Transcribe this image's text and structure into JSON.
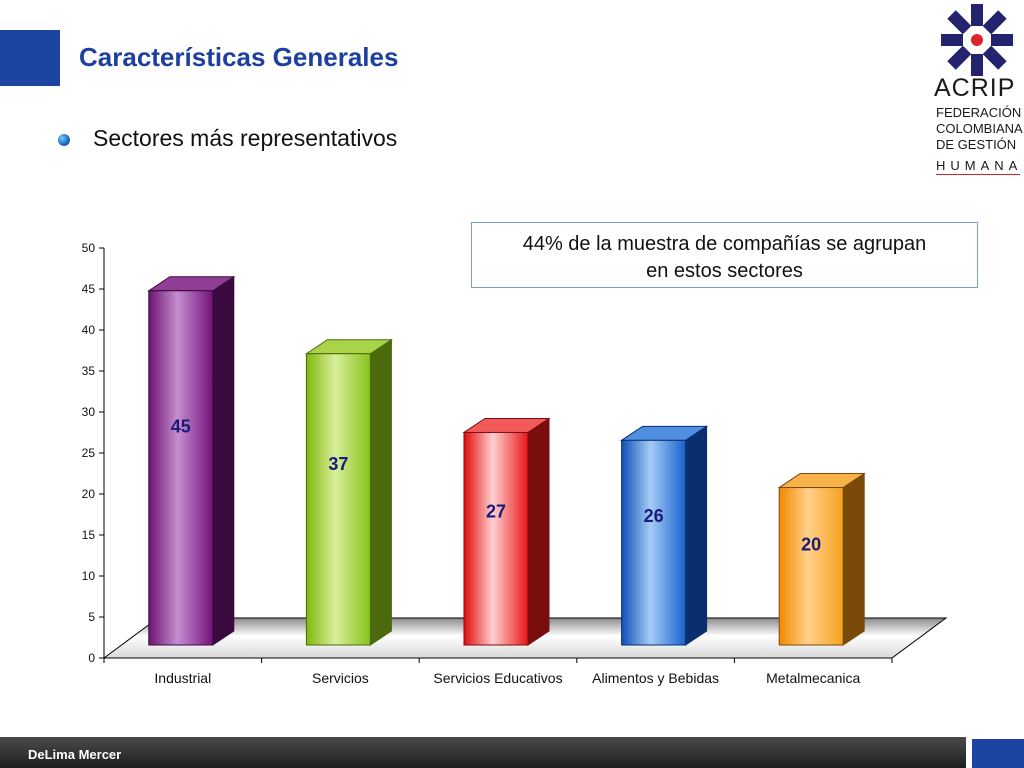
{
  "slide": {
    "title": "Características Generales",
    "bullet": "Sectores más representativos",
    "callout_line1": "44% de la muestra de compañías se agrupan",
    "callout_line2": "en estos sectores",
    "footer": "DeLima Mercer"
  },
  "logo": {
    "name": "ACRIP",
    "line1": "FEDERACIÓN",
    "line2": "COLOMBIANA",
    "line3": "DE GESTIÓN",
    "line4": "HUMANA",
    "icon": "acrip-star-icon"
  },
  "colors": {
    "accent": "#1d43a3",
    "title": "#1d3fa0",
    "label": "#1b1b7a"
  },
  "chart_data": {
    "type": "bar",
    "categories": [
      "Industrial",
      "Servicios",
      "Servicios Educativos",
      "Alimentos y Bebidas",
      "Metalmecanica"
    ],
    "values": [
      45,
      37,
      27,
      26,
      20
    ],
    "data_labels": [
      "45",
      "37",
      "27",
      "26",
      "20"
    ],
    "bar_colors": [
      {
        "face": [
          "#6e1272",
          "#c58ed0",
          "#74107a"
        ],
        "side": "#3a0a3e",
        "top": "#8f3d95"
      },
      {
        "face": [
          "#7fb80f",
          "#d9ef9b",
          "#86c21a"
        ],
        "side": "#4a6a0b",
        "top": "#a9d44a"
      },
      {
        "face": [
          "#e00b0b",
          "#ffd0d0",
          "#e81515"
        ],
        "side": "#7a0d0d",
        "top": "#f25a5a"
      },
      {
        "face": [
          "#0e4fb6",
          "#a6ccf5",
          "#1761cf"
        ],
        "side": "#0a2f6e",
        "top": "#4f8ee0"
      },
      {
        "face": [
          "#f28a00",
          "#ffd08a",
          "#f7a21e"
        ],
        "side": "#7a4a08",
        "top": "#f7b24a"
      }
    ],
    "ylim": [
      0,
      50
    ],
    "yticks": [
      0,
      5,
      10,
      15,
      20,
      25,
      30,
      35,
      40,
      45,
      50
    ],
    "grid": false,
    "title": "",
    "xlabel": "",
    "ylabel": ""
  }
}
